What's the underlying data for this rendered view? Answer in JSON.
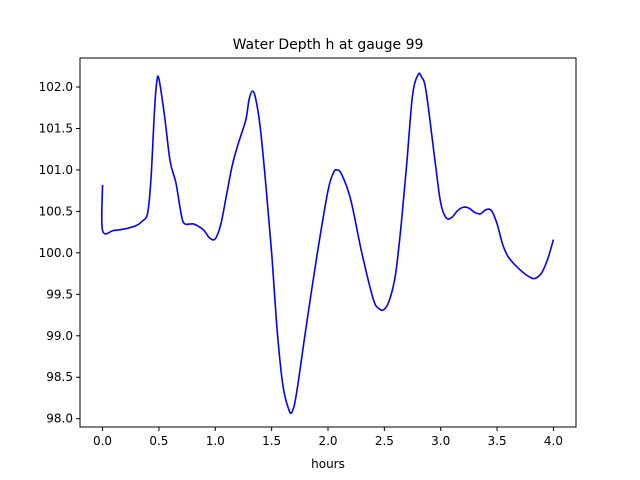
{
  "chart_data": {
    "type": "line",
    "title": "Water Depth h at gauge 99",
    "xlabel": "hours",
    "ylabel": "",
    "xlim": [
      -0.2,
      4.2
    ],
    "ylim": [
      97.9,
      102.35
    ],
    "x_ticks": [
      "0.0",
      "0.5",
      "1.0",
      "1.5",
      "2.0",
      "2.5",
      "3.0",
      "3.5",
      "4.0"
    ],
    "y_ticks": [
      "98.0",
      "98.5",
      "99.0",
      "99.5",
      "100.0",
      "100.5",
      "101.0",
      "101.5",
      "102.0"
    ],
    "grid": false,
    "legend": "none",
    "series": [
      {
        "color": "#0000ff",
        "x": [
          0.0,
          0.0,
          0.1,
          0.2,
          0.3,
          0.35,
          0.4,
          0.43,
          0.46,
          0.48,
          0.5,
          0.55,
          0.6,
          0.65,
          0.7,
          0.73,
          0.8,
          0.85,
          0.9,
          0.95,
          1.0,
          1.05,
          1.1,
          1.15,
          1.2,
          1.27,
          1.3,
          1.33,
          1.36,
          1.4,
          1.45,
          1.5,
          1.55,
          1.6,
          1.65,
          1.68,
          1.72,
          1.8,
          1.9,
          2.0,
          2.05,
          2.08,
          2.12,
          2.2,
          2.3,
          2.4,
          2.45,
          2.5,
          2.55,
          2.6,
          2.65,
          2.7,
          2.75,
          2.8,
          2.83,
          2.87,
          2.95,
          3.0,
          3.05,
          3.1,
          3.15,
          3.2,
          3.25,
          3.3,
          3.35,
          3.4,
          3.45,
          3.5,
          3.55,
          3.6,
          3.7,
          3.8,
          3.85,
          3.9,
          3.95,
          4.0
        ],
        "y": [
          100.82,
          100.27,
          100.27,
          100.29,
          100.33,
          100.38,
          100.48,
          100.9,
          101.7,
          102.05,
          102.1,
          101.65,
          101.1,
          100.85,
          100.45,
          100.35,
          100.35,
          100.32,
          100.27,
          100.18,
          100.17,
          100.35,
          100.7,
          101.05,
          101.3,
          101.6,
          101.85,
          101.95,
          101.85,
          101.5,
          100.8,
          100.0,
          99.05,
          98.4,
          98.12,
          98.08,
          98.3,
          99.05,
          99.95,
          100.75,
          100.97,
          101.0,
          100.95,
          100.65,
          100.0,
          99.45,
          99.33,
          99.32,
          99.45,
          99.75,
          100.35,
          101.1,
          101.9,
          102.15,
          102.12,
          101.95,
          101.1,
          100.6,
          100.42,
          100.43,
          100.51,
          100.55,
          100.54,
          100.49,
          100.47,
          100.52,
          100.51,
          100.35,
          100.1,
          99.95,
          99.8,
          99.7,
          99.7,
          99.77,
          99.93,
          100.16
        ]
      }
    ]
  }
}
